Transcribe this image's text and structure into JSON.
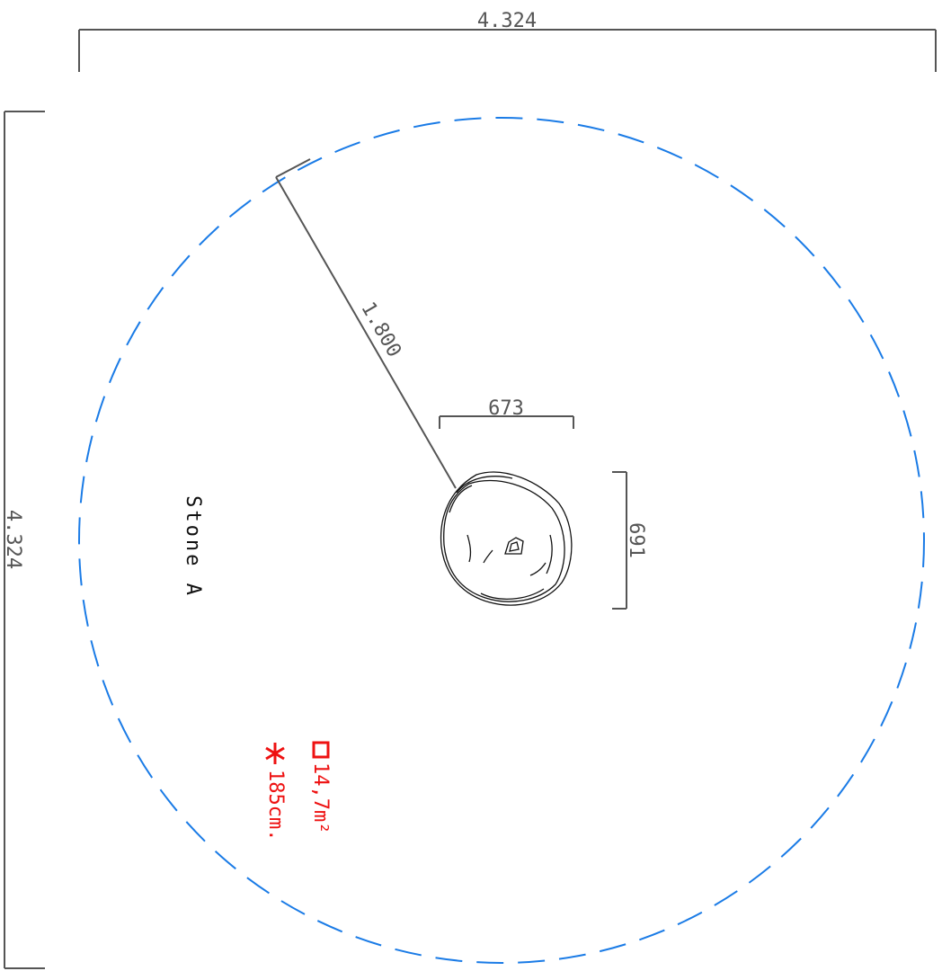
{
  "colors": {
    "safety_zone": "#1a7be6",
    "dimension": "#555555",
    "stone": "#111111",
    "annotation": "#ee1111"
  },
  "dimensions": {
    "top_width": "4.324",
    "left_height": "4.324",
    "radius": "1.800",
    "stone_width": "673",
    "stone_height": "691"
  },
  "label": "Stone A",
  "annotations": {
    "area": "14,7m²",
    "fall_height": "185cm."
  },
  "icons": {
    "area": "square-icon",
    "height": "asterisk-icon"
  }
}
